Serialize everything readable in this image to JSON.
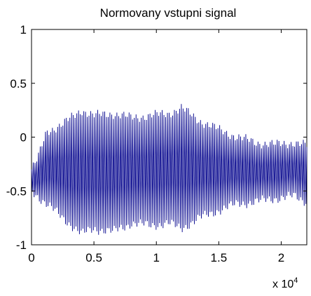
{
  "chart_data": {
    "type": "line",
    "title": "Normovany vstupni signal",
    "xlabel": "",
    "ylabel": "",
    "xlim": [
      0,
      22050
    ],
    "ylim": [
      -1,
      1
    ],
    "x_ticks": [
      {
        "value": 0,
        "label": "0"
      },
      {
        "value": 5000,
        "label": "0.5"
      },
      {
        "value": 10000,
        "label": "1"
      },
      {
        "value": 15000,
        "label": "1.5"
      },
      {
        "value": 20000,
        "label": "2"
      }
    ],
    "y_ticks": [
      {
        "value": 1,
        "label": "1"
      },
      {
        "value": 0.5,
        "label": "0.5"
      },
      {
        "value": 0,
        "label": "0"
      },
      {
        "value": -0.5,
        "label": "-0.5"
      },
      {
        "value": -1,
        "label": "-1"
      }
    ],
    "x_multiplier": {
      "base": "x 10",
      "exponent": "4"
    },
    "grid": false,
    "line_color": "#00008b",
    "series": [
      {
        "oscillation_cycles": 158,
        "envelope": {
          "x": [
            0,
            500,
            1200,
            2500,
            4000,
            5000,
            6500,
            8000,
            9500,
            11000,
            12000,
            13500,
            15000,
            16500,
            18000,
            19500,
            21000,
            22050
          ],
          "upper": [
            -0.3,
            -0.2,
            0.05,
            0.12,
            0.25,
            0.2,
            0.22,
            0.18,
            0.2,
            0.22,
            0.27,
            0.15,
            0.07,
            0.0,
            -0.05,
            -0.07,
            -0.05,
            -0.08
          ],
          "lower": [
            -0.5,
            -0.55,
            -0.62,
            -0.75,
            -0.9,
            -0.85,
            -0.88,
            -0.8,
            -0.82,
            -0.8,
            -0.85,
            -0.75,
            -0.68,
            -0.62,
            -0.6,
            -0.57,
            -0.55,
            -0.6
          ]
        }
      }
    ]
  }
}
